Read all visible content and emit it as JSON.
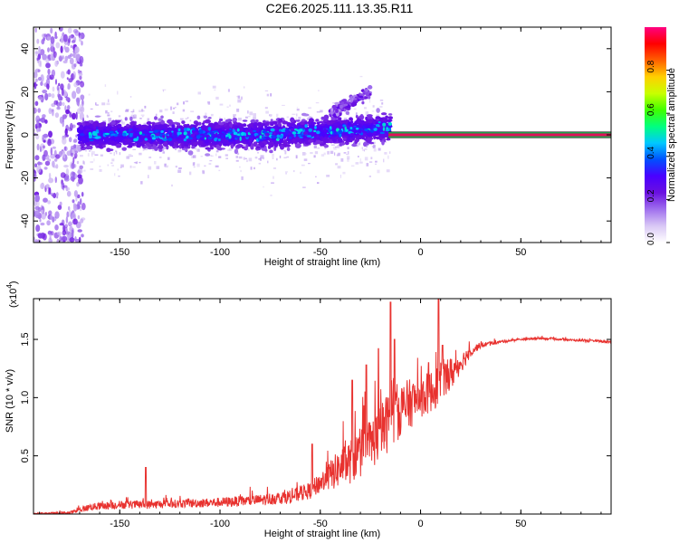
{
  "figure": {
    "title": "C2E6.2025.111.13.35.R11"
  },
  "colors": {
    "snr_line": "#e8322f",
    "signal_line": "#e0105a",
    "signal_outline": "#1fa04a",
    "axis": "#000000",
    "colormap": [
      "#ffffff",
      "#d9c8f5",
      "#a070ee",
      "#6a10e0",
      "#4a00ff",
      "#0050ff",
      "#00c8ff",
      "#00ff80",
      "#40ff00",
      "#c8ff00",
      "#ffd000",
      "#ff6000",
      "#ff0000",
      "#ff0080"
    ]
  },
  "chart_data": [
    {
      "type": "heatmap",
      "title": "C2E6.2025.111.13.35.R11",
      "xlabel": "Height of straight line (km)",
      "ylabel": "Frequency (Hz)",
      "xlim": [
        -193,
        95
      ],
      "ylim": [
        -50,
        50
      ],
      "xticks": [
        -150,
        -100,
        -50,
        0,
        50
      ],
      "xtick_labels": [
        "-150",
        "-100",
        "-50",
        "0",
        "50"
      ],
      "yticks": [
        -40,
        -20,
        0,
        20,
        40
      ],
      "ytick_labels": [
        "-40",
        "-20",
        "0",
        "20",
        "40"
      ],
      "colorbar": {
        "label": "Normalized spectral amplitude",
        "range": [
          0,
          1
        ],
        "ticks": [
          0.0,
          0.2,
          0.4,
          0.6,
          0.8
        ],
        "tick_labels": [
          "0.0",
          "0.2",
          "0.4",
          "0.6",
          "0.8"
        ]
      },
      "description_values": {
        "noise_region_x": [
          -193,
          -168
        ],
        "main_band": {
          "x": [
            -170,
            -15
          ],
          "freq_center": 0,
          "freq_spread": 8
        },
        "drifting_band": {
          "x": [
            -45,
            -25
          ],
          "freq_start": 10,
          "freq_end": 20
        },
        "strong_tone": {
          "x": [
            -16,
            95
          ],
          "freq": 0,
          "amplitude": 1.0
        }
      }
    },
    {
      "type": "line",
      "xlabel": "Height of straight line (km)",
      "ylabel": "SNR (10 * v/v)",
      "y_multiplier": "(x10",
      "y_multiplier_exp": "4",
      "y_multiplier_close": ")",
      "xlim": [
        -193,
        95
      ],
      "ylim": [
        0,
        1.85
      ],
      "xticks": [
        -150,
        -100,
        -50,
        0,
        50
      ],
      "xtick_labels": [
        "-150",
        "-100",
        "-50",
        "0",
        "50"
      ],
      "yticks": [
        0.5,
        1.0,
        1.5
      ],
      "ytick_labels": [
        "0.5",
        "1.0",
        "1.5"
      ],
      "series": [
        {
          "name": "SNR",
          "x": [
            -193,
            -175,
            -165,
            -150,
            -135,
            -120,
            -100,
            -80,
            -65,
            -55,
            -50,
            -45,
            -40,
            -35,
            -30,
            -25,
            -20,
            -15,
            -10,
            -5,
            0,
            5,
            10,
            15,
            20,
            25,
            30,
            40,
            50,
            60,
            70,
            80,
            95
          ],
          "y": [
            0.005,
            0.01,
            0.06,
            0.08,
            0.08,
            0.09,
            0.1,
            0.12,
            0.15,
            0.2,
            0.27,
            0.33,
            0.4,
            0.45,
            0.52,
            0.6,
            0.7,
            0.82,
            0.9,
            0.95,
            1.0,
            1.05,
            1.12,
            1.2,
            1.3,
            1.4,
            1.45,
            1.48,
            1.5,
            1.51,
            1.5,
            1.49,
            1.48
          ],
          "noise_amplitude": [
            0.003,
            0.02,
            0.05,
            0.06,
            0.06,
            0.06,
            0.07,
            0.08,
            0.1,
            0.12,
            0.15,
            0.22,
            0.28,
            0.32,
            0.35,
            0.38,
            0.4,
            0.45,
            0.4,
            0.35,
            0.3,
            0.3,
            0.3,
            0.25,
            0.15,
            0.08,
            0.04,
            0.02,
            0.015,
            0.015,
            0.015,
            0.015,
            0.015
          ],
          "peaks": [
            {
              "x": -137,
              "y": 0.4
            },
            {
              "x": -54,
              "y": 0.6
            },
            {
              "x": -34,
              "y": 1.15
            },
            {
              "x": -27,
              "y": 1.28
            },
            {
              "x": -21,
              "y": 1.42
            },
            {
              "x": -15,
              "y": 1.82
            },
            {
              "x": -13,
              "y": 1.5
            },
            {
              "x": 4,
              "y": 1.3
            },
            {
              "x": 9,
              "y": 1.85
            },
            {
              "x": 11,
              "y": 1.45
            }
          ]
        }
      ]
    }
  ]
}
